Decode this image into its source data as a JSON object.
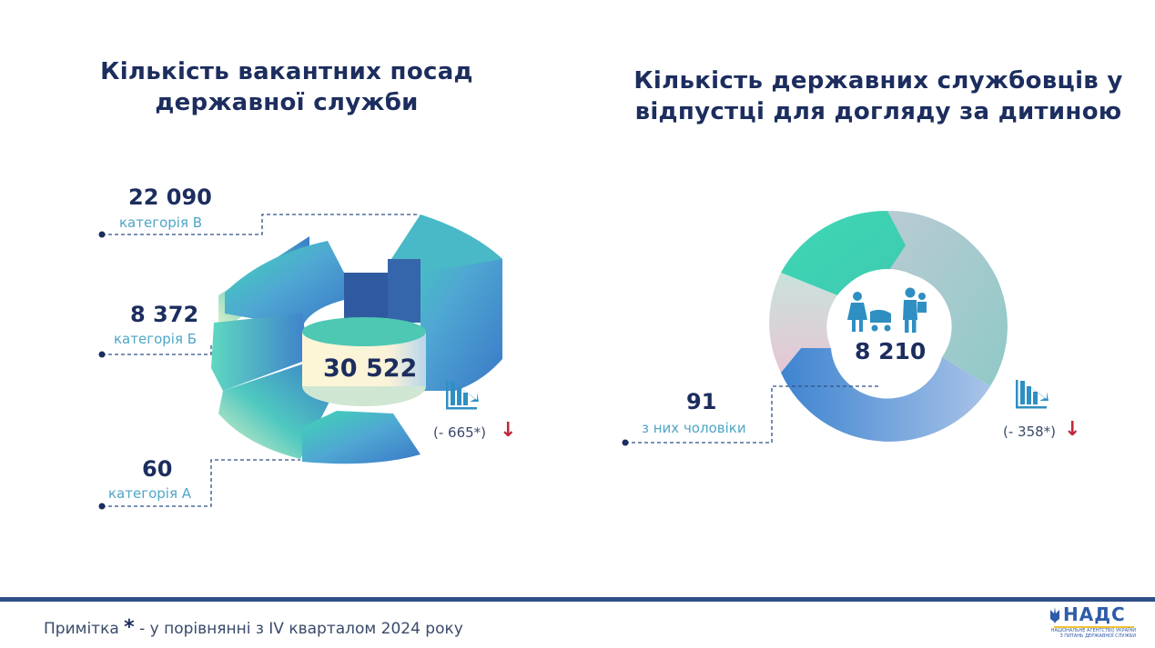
{
  "chart_data": [
    {
      "type": "pie",
      "title": "Кількість вакантних посад державної служби",
      "total": "30 522",
      "change": "(- 665*)",
      "slices": [
        {
          "label": "категорія В",
          "value": 22090,
          "display": "22 090"
        },
        {
          "label": "категорія Б",
          "value": 8372,
          "display": "8 372"
        },
        {
          "label": "категорія А",
          "value": 60,
          "display": "60"
        }
      ]
    },
    {
      "type": "pie",
      "title": "Кількість державних службовців у відпустці для догляду за дитиною",
      "total": "8 210",
      "change": "(- 358*)",
      "slices": [
        {
          "label": "з них чоловіки",
          "value": 91,
          "display": "91"
        }
      ]
    }
  ],
  "footnote": {
    "prefix": "Примітка",
    "star": "*",
    "text": "- у порівнянні з IV кварталом 2024 року"
  },
  "logo": {
    "name": "НАДС",
    "subtitle": "НАЦІОНАЛЬНЕ АГЕНТСТВО УКРАЇНИ З ПИТАНЬ ДЕРЖАВНОЇ СЛУЖБИ"
  },
  "icons": [
    "bar-chart-decrease-icon",
    "mother-stroller-icon",
    "father-child-icon",
    "down-arrow-icon",
    "trident-icon"
  ],
  "colors": {
    "title": "#1c2d5e",
    "label": "#4fa6c5",
    "arrow": "#c0283b",
    "bar": "#2f4f86"
  }
}
